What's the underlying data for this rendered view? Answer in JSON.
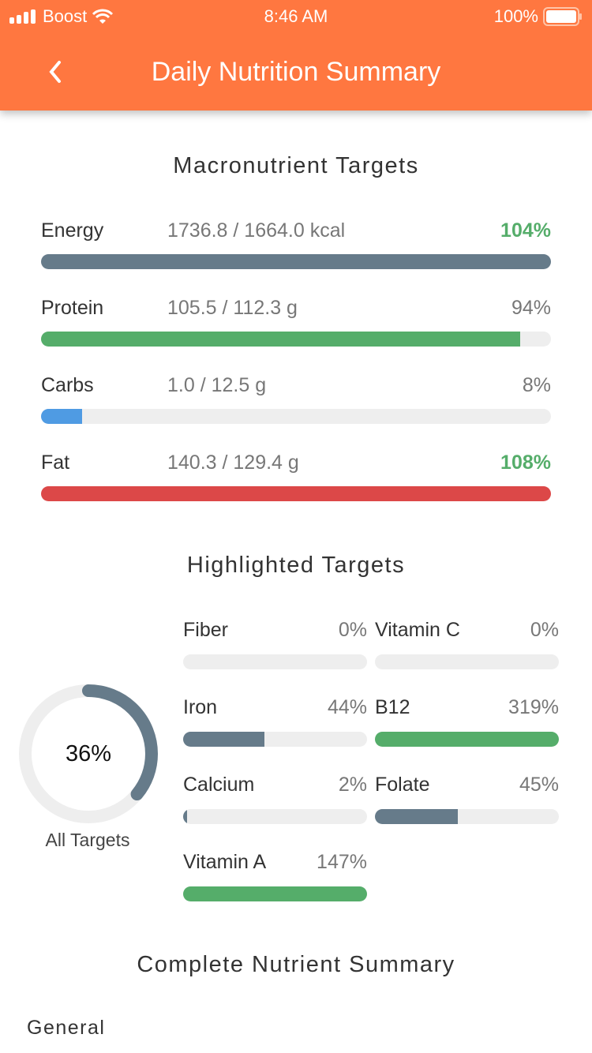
{
  "status_bar": {
    "carrier": "Boost",
    "time": "8:46 AM",
    "battery": "100%"
  },
  "header": {
    "title": "Daily Nutrition Summary",
    "back_icon": "chevron-left-icon"
  },
  "colors": {
    "brand": "#FF7740",
    "slate": "#667B8A",
    "green": "#55AD6A",
    "blue": "#4F9BE3",
    "red": "#DC4848",
    "track": "#EEEEEE"
  },
  "macros": {
    "title": "Macronutrient Targets",
    "items": [
      {
        "label": "Energy",
        "value": "1736.8 / 1664.0 kcal",
        "pct": "104%",
        "fraction": 1.0,
        "color": "#667B8A",
        "over": true
      },
      {
        "label": "Protein",
        "value": "105.5 / 112.3 g",
        "pct": "94%",
        "fraction": 0.94,
        "color": "#55AD6A",
        "over": false
      },
      {
        "label": "Carbs",
        "value": "1.0 / 12.5 g",
        "pct": "8%",
        "fraction": 0.08,
        "color": "#4F9BE3",
        "over": false
      },
      {
        "label": "Fat",
        "value": "140.3 / 129.4 g",
        "pct": "108%",
        "fraction": 1.0,
        "color": "#DC4848",
        "over": true
      }
    ]
  },
  "highlighted": {
    "title": "Highlighted Targets",
    "ring": {
      "pct": "36%",
      "fraction": 0.36,
      "label": "All Targets"
    },
    "items": [
      {
        "label": "Fiber",
        "pct": "0%",
        "fraction": 0,
        "color": "#667B8A"
      },
      {
        "label": "Vitamin C",
        "pct": "0%",
        "fraction": 0,
        "color": "#667B8A"
      },
      {
        "label": "Iron",
        "pct": "44%",
        "fraction": 0.44,
        "color": "#667B8A"
      },
      {
        "label": "B12",
        "pct": "319%",
        "fraction": 1.0,
        "color": "#55AD6A"
      },
      {
        "label": "Calcium",
        "pct": "2%",
        "fraction": 0.02,
        "color": "#667B8A"
      },
      {
        "label": "Folate",
        "pct": "45%",
        "fraction": 0.45,
        "color": "#667B8A"
      },
      {
        "label": "Vitamin A",
        "pct": "147%",
        "fraction": 1.0,
        "color": "#55AD6A"
      }
    ]
  },
  "complete": {
    "title": "Complete Nutrient Summary",
    "section": "General"
  }
}
